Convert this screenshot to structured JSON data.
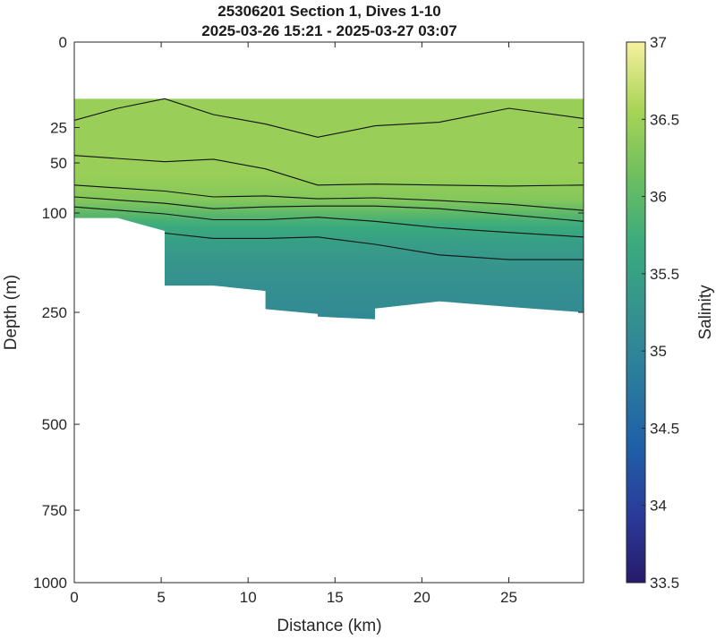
{
  "chart_data": {
    "type": "heatmap",
    "title": "25306201 Section 1, Dives 1-10",
    "subtitle": "2025-03-26 15:21 - 2025-03-27 03:07",
    "xlabel": "Distance (km)",
    "ylabel": "Depth (m)",
    "colorbar_label": "Salinity",
    "xlim": [
      0,
      29.3
    ],
    "ylim": [
      0,
      1000
    ],
    "y_scale": "sqrt",
    "x_ticks": [
      "0",
      "5",
      "10",
      "15",
      "20",
      "25"
    ],
    "x_tick_values": [
      0,
      5,
      10,
      15,
      20,
      25
    ],
    "y_ticks": [
      "0",
      "25",
      "50",
      "100",
      "250",
      "500",
      "750",
      "1000"
    ],
    "y_tick_values": [
      0,
      25,
      50,
      100,
      250,
      500,
      750,
      1000
    ],
    "colorbar_ticks": [
      "33.5",
      "34",
      "34.5",
      "35",
      "35.5",
      "36",
      "36.5",
      "37"
    ],
    "colorbar_tick_values": [
      33.5,
      34,
      34.5,
      35,
      35.5,
      36,
      36.5,
      37
    ],
    "clim": [
      33.5,
      37
    ],
    "colormap": [
      "#271a6b",
      "#2a3b9a",
      "#1f5fa8",
      "#2a7b9e",
      "#35928e",
      "#3aaa7e",
      "#6cbf5f",
      "#a8d456",
      "#f7f0a0"
    ],
    "grid": false,
    "data_top_depth": 11,
    "bottom_profile": {
      "x": [
        0,
        2.5,
        5.2,
        5.2,
        8,
        11,
        11,
        14,
        14,
        17.3,
        17.3,
        21,
        25,
        29.3
      ],
      "depth": [
        106,
        106,
        122,
        203,
        203,
        212,
        244,
        253,
        258,
        263,
        243,
        230,
        240,
        250
      ]
    },
    "salinity_profile": {
      "depth": [
        11,
        60,
        85,
        100,
        115,
        140,
        170,
        210,
        260
      ],
      "salinity": [
        36.45,
        36.45,
        36.3,
        36.0,
        35.7,
        35.45,
        35.3,
        35.2,
        35.1
      ]
    },
    "contours": [
      {
        "x": [
          0,
          2.5,
          5.2,
          8,
          11,
          14,
          17.3,
          21,
          25,
          29.3
        ],
        "depth": [
          21,
          15,
          11,
          18,
          23,
          31,
          24,
          22,
          15,
          20
        ]
      },
      {
        "x": [
          0,
          5.2,
          8,
          11,
          14,
          17.3,
          21,
          25,
          29.3
        ],
        "depth": [
          44,
          49,
          47,
          55,
          70,
          69,
          70,
          71,
          70
        ]
      },
      {
        "x": [
          0,
          5.2,
          8,
          11,
          14,
          17.3,
          21,
          25,
          29.3
        ],
        "depth": [
          70,
          76,
          82,
          81,
          84,
          83,
          86,
          90,
          97
        ]
      },
      {
        "x": [
          0,
          5.2,
          8,
          11,
          14,
          17.3,
          21,
          25,
          29.3
        ],
        "depth": [
          82,
          89,
          95,
          93,
          92,
          92,
          95,
          102,
          110
        ]
      },
      {
        "x": [
          0,
          5.2,
          8,
          11,
          14,
          17.3,
          21,
          25,
          29.3
        ],
        "depth": [
          93,
          101,
          108,
          108,
          105,
          110,
          118,
          124,
          130
        ]
      },
      {
        "x": [
          5.2,
          8,
          11,
          14,
          17.3,
          21,
          25,
          29.3
        ],
        "depth": [
          125,
          132,
          132,
          130,
          140,
          155,
          162,
          162
        ]
      }
    ]
  }
}
